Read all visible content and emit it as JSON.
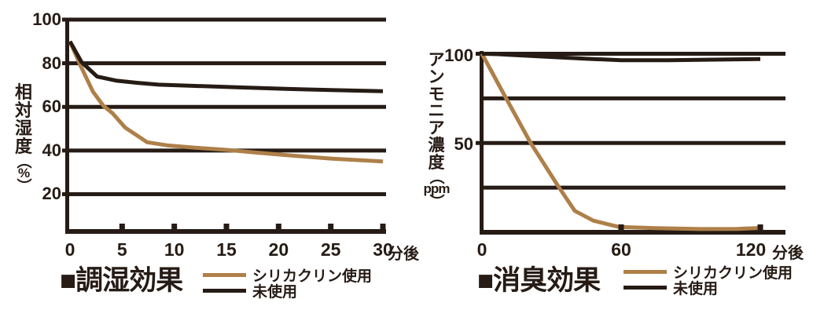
{
  "colors": {
    "ink": "#261b15",
    "accent_brown": "#ae8049",
    "background": "#ffffff"
  },
  "chart_data": [
    {
      "type": "line",
      "title": "■調湿効果",
      "ylabel": "相対湿度（%）",
      "x_unit_label": "分後",
      "xlim": [
        0,
        30
      ],
      "ylim": [
        0,
        100
      ],
      "grid": "horizontal",
      "legend_position": "below-right-of-title",
      "y_gridlines": [
        100,
        80,
        60,
        40,
        20
      ],
      "y_tick_labels": [
        {
          "value": 100,
          "label": "100"
        },
        {
          "value": 80,
          "label": "80"
        },
        {
          "value": 60,
          "label": "60"
        },
        {
          "value": 40,
          "label": "40"
        },
        {
          "value": 20,
          "label": "20"
        }
      ],
      "x_tick_labels": [
        {
          "value": 0,
          "label": "0"
        },
        {
          "value": 5,
          "label": "5"
        },
        {
          "value": 10,
          "label": "10"
        },
        {
          "value": 15,
          "label": "15"
        },
        {
          "value": 20,
          "label": "20"
        },
        {
          "value": 25,
          "label": "25"
        },
        {
          "value": 30,
          "label": "30"
        }
      ],
      "x_tick_marks": [
        5,
        10,
        15,
        20,
        25,
        30
      ],
      "series": [
        {
          "name": "シリカクリン使用",
          "color": "#ae8049",
          "points": [
            [
              0,
              90
            ],
            [
              1,
              79
            ],
            [
              2.2,
              67
            ],
            [
              3.2,
              60.5
            ],
            [
              4.1,
              57
            ],
            [
              5.3,
              50.5
            ],
            [
              7.4,
              43.8
            ],
            [
              9.3,
              42.4
            ],
            [
              12,
              41.3
            ],
            [
              15,
              40.3
            ],
            [
              18,
              39
            ],
            [
              21,
              37.8
            ],
            [
              25,
              36.3
            ],
            [
              30,
              35
            ]
          ]
        },
        {
          "name": "未使用",
          "color": "#261b15",
          "points": [
            [
              0,
              90
            ],
            [
              1.1,
              80.6
            ],
            [
              2.6,
              73.9
            ],
            [
              4.5,
              72
            ],
            [
              6.5,
              71
            ],
            [
              8.5,
              70.2
            ],
            [
              12,
              69.6
            ],
            [
              16,
              69
            ],
            [
              21,
              68.2
            ],
            [
              25,
              67.7
            ],
            [
              30,
              67.2
            ]
          ]
        }
      ]
    },
    {
      "type": "line",
      "title": "■消臭効果",
      "ylabel": "アンモニア濃度（ppm）",
      "x_unit_label": "分後",
      "xlim": [
        0,
        120
      ],
      "ylim": [
        0,
        100
      ],
      "grid": "horizontal",
      "legend_position": "below-right-of-title",
      "y_gridlines": [
        100,
        75,
        50,
        25
      ],
      "y_tick_labels": [
        {
          "value": 100,
          "label": "100"
        },
        {
          "value": 50,
          "label": "50"
        }
      ],
      "x_tick_labels": [
        {
          "value": 0,
          "label": "0"
        },
        {
          "value": 60,
          "label": "60"
        },
        {
          "value": 120,
          "label": "120"
        }
      ],
      "x_tick_marks": [
        60,
        120
      ],
      "series": [
        {
          "name": "シリカクリン使用",
          "color": "#ae8049",
          "points": [
            [
              0,
              100
            ],
            [
              10,
              76
            ],
            [
              21,
              50
            ],
            [
              33,
              25.5
            ],
            [
              40,
              12
            ],
            [
              48,
              6.5
            ],
            [
              59,
              3
            ],
            [
              75,
              2.3
            ],
            [
              95,
              1.8
            ],
            [
              110,
              1.9
            ],
            [
              120,
              2.4
            ]
          ]
        },
        {
          "name": "未使用",
          "color": "#261b15",
          "points": [
            [
              0,
              100
            ],
            [
              8,
              99.7
            ],
            [
              25,
              98.5
            ],
            [
              45,
              97.2
            ],
            [
              60,
              96.4
            ],
            [
              80,
              96.4
            ],
            [
              100,
              96.7
            ],
            [
              120,
              97
            ]
          ]
        }
      ]
    }
  ]
}
